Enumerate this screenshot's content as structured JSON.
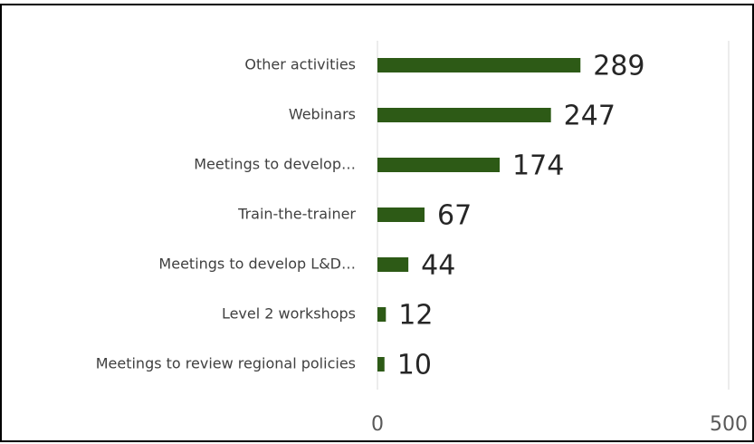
{
  "chart_data": {
    "type": "bar",
    "orientation": "horizontal",
    "categories": [
      "Other activities",
      "Webinars",
      "Meetings to develop…",
      "Train-the-trainer",
      "Meetings to develop L&D…",
      "Level 2 workshops",
      "Meetings to review regional policies"
    ],
    "values": [
      289,
      247,
      174,
      67,
      44,
      12,
      10
    ],
    "color": "#2d5a16",
    "xlim": [
      0,
      500
    ],
    "xticks": [
      0,
      500
    ],
    "grid": true
  }
}
